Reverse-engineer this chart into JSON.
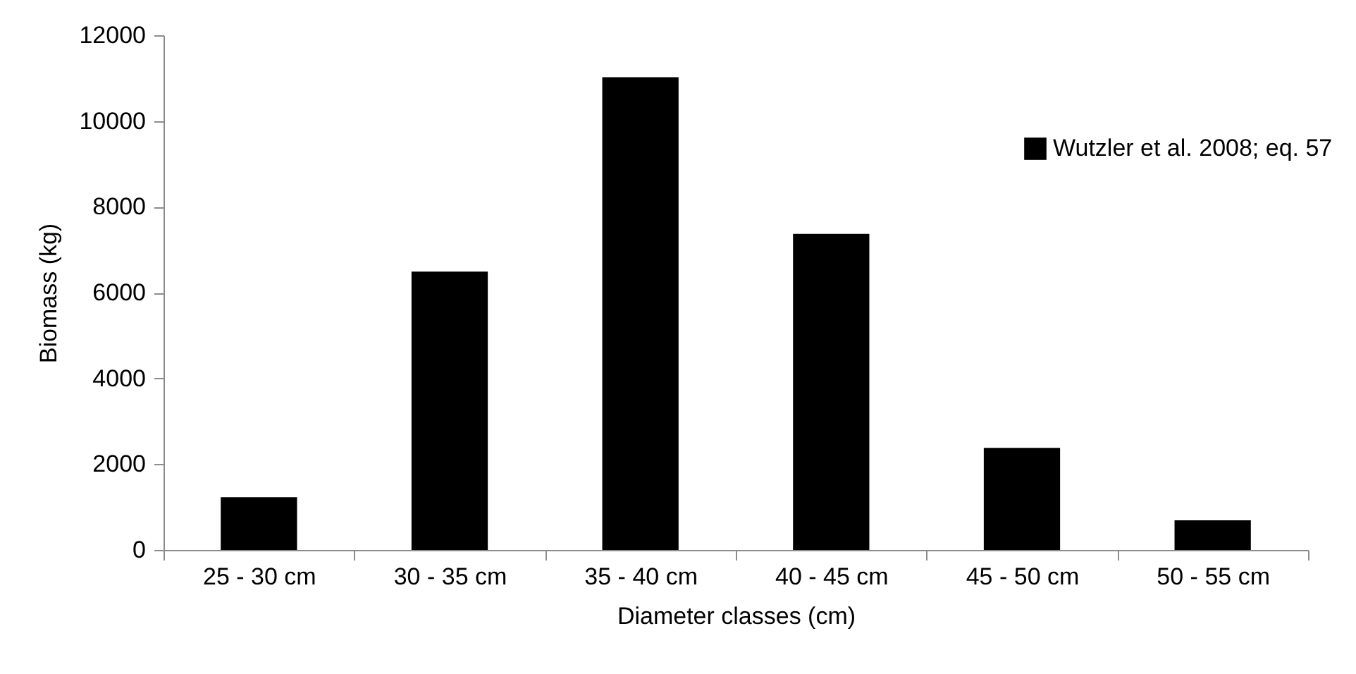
{
  "chart_data": {
    "type": "bar",
    "xlabel": "Diameter classes (cm)",
    "ylabel": "Biomass (kg)",
    "categories": [
      "25 - 30 cm",
      "30 - 35 cm",
      "35 - 40 cm",
      "40 - 45 cm",
      "45 - 50 cm",
      "50 - 55 cm"
    ],
    "series": [
      {
        "name": "Wutzler et al. 2008; eq. 57",
        "color": "#000000",
        "values": [
          1230,
          6490,
          11020,
          7370,
          2380,
          690
        ]
      }
    ],
    "ylim": [
      0,
      12000
    ],
    "yticks": [
      0,
      2000,
      4000,
      6000,
      8000,
      10000,
      12000
    ],
    "grid": false,
    "legend": "top right"
  }
}
